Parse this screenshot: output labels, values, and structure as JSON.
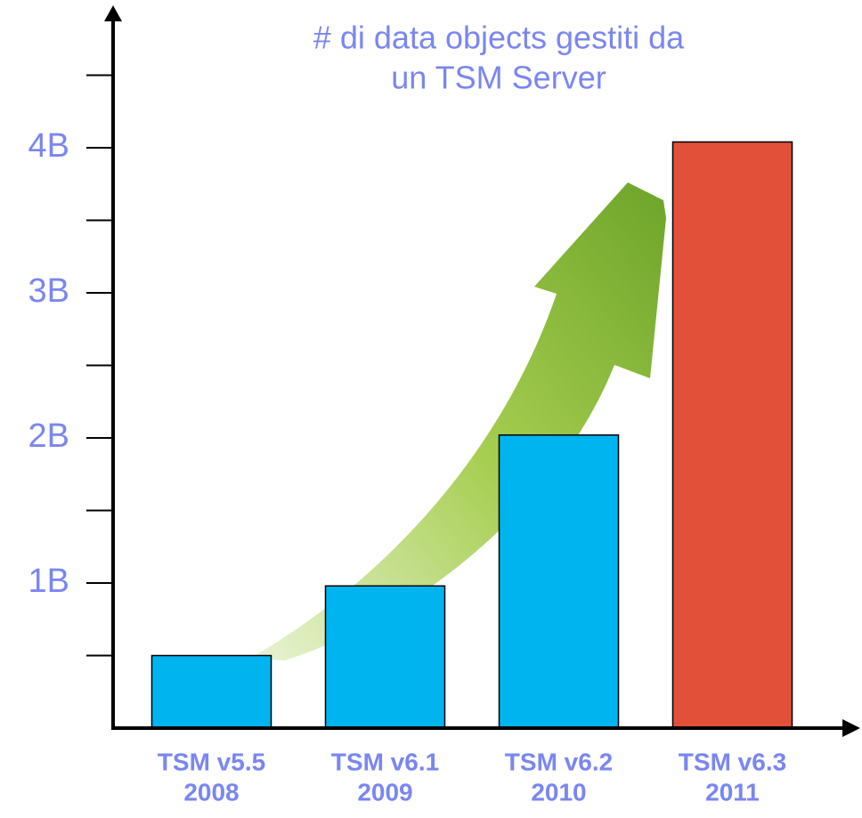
{
  "chart_data": {
    "type": "bar",
    "title": [
      "# di data objects gestiti da",
      "un TSM Server"
    ],
    "categories": [
      [
        "TSM v5.5",
        "2008"
      ],
      [
        "TSM v6.1",
        "2009"
      ],
      [
        "TSM v6.2",
        "2010"
      ],
      [
        "TSM v6.3",
        "2011"
      ]
    ],
    "values": [
      500000000,
      980000000,
      2020000000,
      4040000000
    ],
    "colors": [
      "#00b4ef",
      "#00b4ef",
      "#00b4ef",
      "#e2503a"
    ],
    "ylim": [
      0,
      5000000000
    ],
    "yticks": [
      {
        "value": 1000000000,
        "label": "1B"
      },
      {
        "value": 2000000000,
        "label": "2B"
      },
      {
        "value": 3000000000,
        "label": "3B"
      },
      {
        "value": 4000000000,
        "label": "4B"
      }
    ],
    "minor_yticks": [
      500000000,
      1500000000,
      2500000000,
      3500000000,
      4500000000
    ],
    "text_color": "#7a86f0"
  }
}
